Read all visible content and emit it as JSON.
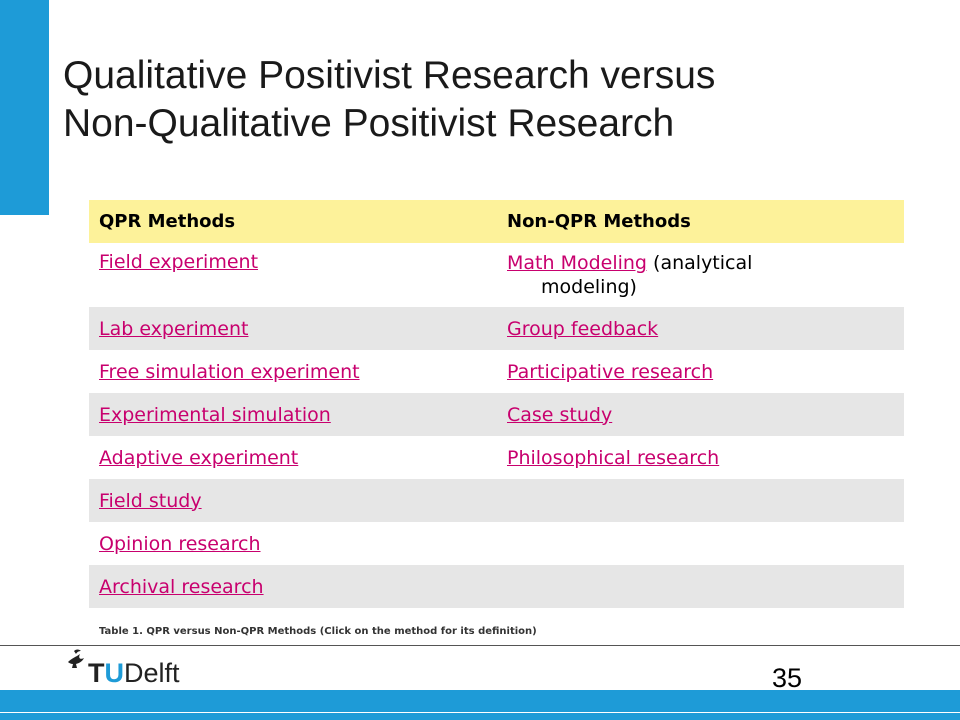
{
  "slide": {
    "title_line1": "Qualitative Positivist Research versus",
    "title_line2": "Non-Qualitative Positivist Research",
    "page_number": "35",
    "caption": "Table 1. QPR versus Non-QPR Methods (Click on the method for its definition)",
    "accent_color": "#1e9bd7",
    "link_color": "#c8006e",
    "header_color": "#fdf29a"
  },
  "table": {
    "headers": [
      "QPR Methods",
      "Non-QPR Methods"
    ],
    "rows": [
      {
        "qpr": "Field experiment",
        "non_qpr": "Math Modeling",
        "non_qpr_note": "(analytical",
        "non_qpr_note2": "modeling)"
      },
      {
        "qpr": "Lab experiment",
        "non_qpr": "Group feedback"
      },
      {
        "qpr": "Free simulation experiment",
        "non_qpr": "Participative research"
      },
      {
        "qpr": "Experimental simulation",
        "non_qpr": "Case study"
      },
      {
        "qpr": "Adaptive experiment",
        "non_qpr": "Philosophical research"
      },
      {
        "qpr": "Field study",
        "non_qpr": ""
      },
      {
        "qpr": "Opinion research",
        "non_qpr": ""
      },
      {
        "qpr": "Archival research",
        "non_qpr": ""
      }
    ]
  },
  "logo": {
    "t": "T",
    "u": "U",
    "rest": "Delft",
    "icon": "tudelft-flame-icon"
  }
}
